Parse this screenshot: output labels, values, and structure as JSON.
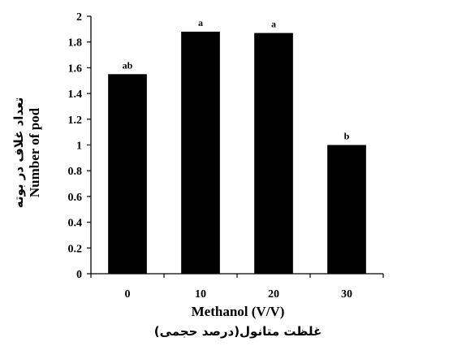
{
  "chart_data": {
    "type": "bar",
    "categories": [
      "0",
      "10",
      "20",
      "30"
    ],
    "values": [
      1.55,
      1.88,
      1.87,
      1.0
    ],
    "data_labels": [
      "ab",
      "a",
      "a",
      "b"
    ],
    "xlabel": "Methanol (V/V)",
    "xlabel_fa": "غلظت متانول(درصد حجمی)",
    "ylabel": "Number of pod",
    "ylabel_fa": "تعداد غلاف در بوته",
    "ylim": [
      0,
      2
    ],
    "yticks": [
      "0",
      "0.2",
      "0.4",
      "0.6",
      "0.8",
      "1",
      "1.2",
      "1.4",
      "1.6",
      "1.8",
      "2"
    ],
    "grid": false,
    "legend": "none",
    "bar_color": "#000000"
  }
}
